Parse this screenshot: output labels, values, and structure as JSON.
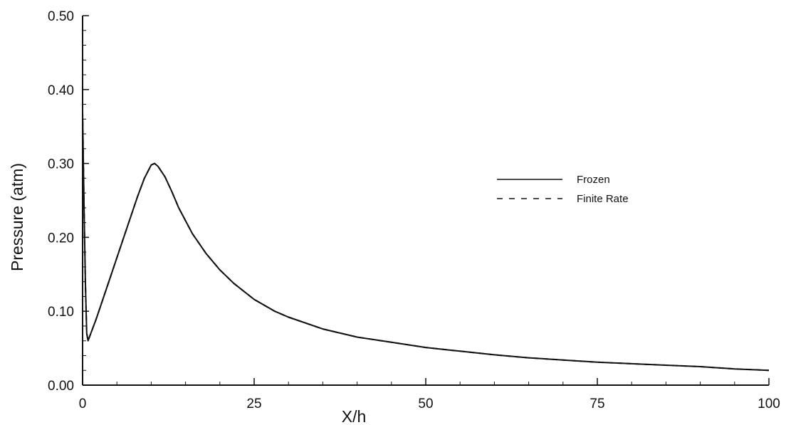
{
  "chart_data": {
    "type": "line",
    "xlabel": "X/h",
    "ylabel": "Pressure  (atm)",
    "xlim": [
      0,
      100
    ],
    "ylim": [
      0,
      0.5
    ],
    "x_ticks": [
      "0",
      "25",
      "50",
      "75",
      "100"
    ],
    "y_ticks": [
      "0.00",
      "0.10",
      "0.20",
      "0.30",
      "0.40",
      "0.50"
    ],
    "grid": false,
    "legend_position": "right",
    "series": [
      {
        "name": "Frozen",
        "style": "solid",
        "color": "#111111",
        "x": [
          0,
          0.2,
          0.4,
          0.6,
          0.8,
          1,
          2,
          4,
          6,
          8,
          9,
          10,
          10.5,
          11,
          12,
          13,
          14,
          16,
          18,
          20,
          22,
          25,
          28,
          30,
          35,
          40,
          45,
          50,
          55,
          60,
          65,
          70,
          75,
          80,
          85,
          90,
          95,
          100
        ],
        "y": [
          0.37,
          0.25,
          0.14,
          0.07,
          0.06,
          0.065,
          0.09,
          0.145,
          0.2,
          0.255,
          0.28,
          0.298,
          0.3,
          0.296,
          0.282,
          0.262,
          0.24,
          0.205,
          0.178,
          0.156,
          0.138,
          0.116,
          0.1,
          0.092,
          0.076,
          0.065,
          0.058,
          0.051,
          0.046,
          0.041,
          0.037,
          0.034,
          0.031,
          0.029,
          0.027,
          0.025,
          0.022,
          0.02
        ]
      },
      {
        "name": "Finite Rate",
        "style": "dashed",
        "color": "#111111",
        "x": [
          0,
          0.2,
          0.4,
          0.6,
          0.8,
          1,
          2,
          4,
          6,
          8,
          9,
          10,
          10.5,
          11,
          12,
          13,
          14,
          16,
          18,
          20,
          22,
          25,
          28,
          30,
          35,
          40,
          45,
          50,
          55,
          60,
          65,
          70,
          75,
          80,
          85,
          90,
          95,
          100
        ],
        "y": [
          0.37,
          0.25,
          0.14,
          0.07,
          0.06,
          0.065,
          0.09,
          0.145,
          0.2,
          0.255,
          0.28,
          0.298,
          0.3,
          0.296,
          0.282,
          0.262,
          0.24,
          0.205,
          0.178,
          0.156,
          0.138,
          0.116,
          0.1,
          0.092,
          0.076,
          0.065,
          0.058,
          0.051,
          0.046,
          0.041,
          0.037,
          0.034,
          0.031,
          0.029,
          0.027,
          0.025,
          0.022,
          0.02
        ]
      }
    ]
  }
}
